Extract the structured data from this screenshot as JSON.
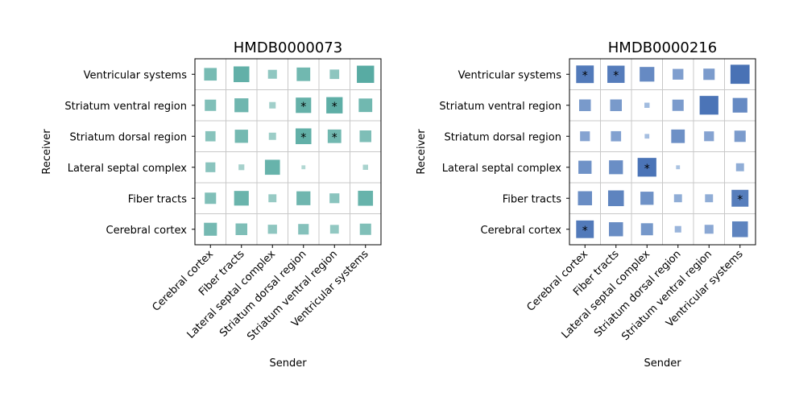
{
  "chart_data": [
    {
      "type": "heatmap",
      "title": "HMDB0000073",
      "xlabel": "Sender",
      "ylabel": "Receiver",
      "x_categories": [
        "Cerebral cortex",
        "Fiber tracts",
        "Lateral septal complex",
        "Striatum dorsal region",
        "Striatum ventral region",
        "Ventricular systems"
      ],
      "y_categories": [
        "Ventricular systems",
        "Striatum ventral region",
        "Striatum dorsal region",
        "Lateral septal complex",
        "Fiber tracts",
        "Cerebral cortex"
      ],
      "encoding": "square size and color intensity show interaction strength (0-1); null = no square; * = significant",
      "palette": [
        "#e6f1ef",
        "#3f9f95"
      ],
      "grid": true,
      "values": [
        [
          0.55,
          0.72,
          0.35,
          0.6,
          0.38,
          0.8
        ],
        [
          0.48,
          0.62,
          0.22,
          0.7,
          0.75,
          0.6
        ],
        [
          0.42,
          0.58,
          0.26,
          0.72,
          0.6,
          0.5
        ],
        [
          0.4,
          0.18,
          0.68,
          0.08,
          null,
          0.15
        ],
        [
          0.48,
          0.66,
          0.3,
          0.62,
          0.4,
          0.68
        ],
        [
          0.57,
          0.5,
          0.36,
          0.44,
          0.34,
          0.48
        ]
      ],
      "significant": [
        [
          false,
          false,
          false,
          false,
          false,
          false
        ],
        [
          false,
          false,
          false,
          true,
          true,
          false
        ],
        [
          false,
          false,
          false,
          true,
          true,
          false
        ],
        [
          false,
          false,
          false,
          false,
          false,
          false
        ],
        [
          false,
          false,
          false,
          false,
          false,
          false
        ],
        [
          false,
          false,
          false,
          false,
          false,
          false
        ]
      ],
      "significance_marker": "*"
    },
    {
      "type": "heatmap",
      "title": "HMDB0000216",
      "xlabel": "Sender",
      "ylabel": "Receiver",
      "x_categories": [
        "Cerebral cortex",
        "Fiber tracts",
        "Lateral septal complex",
        "Striatum dorsal region",
        "Striatum ventral region",
        "Ventricular systems"
      ],
      "y_categories": [
        "Ventricular systems",
        "Striatum ventral region",
        "Striatum dorsal region",
        "Lateral septal complex",
        "Fiber tracts",
        "Cerebral cortex"
      ],
      "encoding": "square size and color intensity show interaction strength (0-1); null = no square; * = significant",
      "palette": [
        "#dcecf9",
        "#3d68b0"
      ],
      "grid": true,
      "values": [
        [
          0.82,
          0.8,
          0.66,
          0.45,
          0.48,
          0.9
        ],
        [
          0.5,
          0.5,
          0.15,
          0.48,
          0.88,
          0.66
        ],
        [
          0.4,
          0.42,
          0.12,
          0.6,
          0.4,
          0.48
        ],
        [
          0.58,
          0.62,
          0.88,
          0.08,
          null,
          0.3
        ],
        [
          0.63,
          0.72,
          0.58,
          0.3,
          0.3,
          0.78
        ],
        [
          0.82,
          0.63,
          0.52,
          0.22,
          0.35,
          0.72
        ]
      ],
      "significant": [
        [
          true,
          true,
          false,
          false,
          false,
          false
        ],
        [
          false,
          false,
          false,
          false,
          false,
          false
        ],
        [
          false,
          false,
          false,
          false,
          false,
          false
        ],
        [
          false,
          false,
          true,
          false,
          false,
          false
        ],
        [
          false,
          false,
          false,
          false,
          false,
          true
        ],
        [
          true,
          false,
          false,
          false,
          false,
          false
        ]
      ],
      "significance_marker": "*"
    }
  ]
}
